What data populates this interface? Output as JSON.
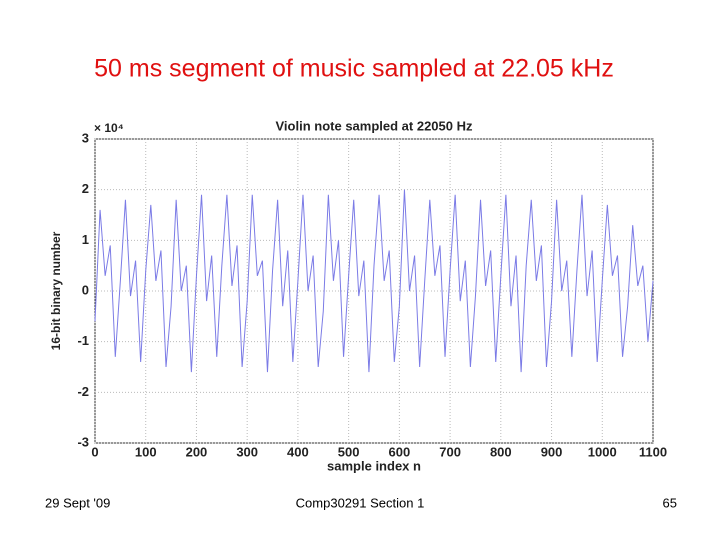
{
  "slide": {
    "title": "50 ms segment of music sampled at 22.05 kHz",
    "date": "29 Sept '09",
    "course": "Comp30291 Section 1",
    "page": "65"
  },
  "chart_data": {
    "type": "line",
    "title": "Violin note sampled at 22050 Hz",
    "x_label": "sample index n",
    "y_label": "16-bit binary number",
    "y_multiplier": "× 10⁴",
    "color": "#7b7be6",
    "grid": true,
    "xlim": [
      0,
      1100
    ],
    "xticks": [
      0,
      100,
      200,
      300,
      400,
      500,
      600,
      700,
      800,
      900,
      1000,
      1100
    ],
    "ylim": [
      -3,
      3
    ],
    "yticks": [
      -3,
      -2,
      -1,
      0,
      1,
      2,
      3
    ],
    "x": [
      0,
      10,
      20,
      30,
      40,
      50,
      60,
      70,
      80,
      90,
      100,
      110,
      120,
      130,
      140,
      150,
      160,
      170,
      180,
      190,
      200,
      210,
      220,
      230,
      240,
      250,
      260,
      270,
      280,
      290,
      300,
      310,
      320,
      330,
      340,
      350,
      360,
      370,
      380,
      390,
      400,
      410,
      420,
      430,
      440,
      450,
      460,
      470,
      480,
      490,
      500,
      510,
      520,
      530,
      540,
      550,
      560,
      570,
      580,
      590,
      600,
      610,
      620,
      630,
      640,
      650,
      660,
      670,
      680,
      690,
      700,
      710,
      720,
      730,
      740,
      750,
      760,
      770,
      780,
      790,
      800,
      810,
      820,
      830,
      840,
      850,
      860,
      870,
      880,
      890,
      900,
      910,
      920,
      930,
      940,
      950,
      960,
      970,
      980,
      990,
      1000,
      1010,
      1020,
      1030,
      1040,
      1050,
      1060,
      1070,
      1080,
      1090,
      1100
    ],
    "values": [
      -0.6,
      1.6,
      0.3,
      0.9,
      -1.3,
      0.2,
      1.8,
      -0.1,
      0.6,
      -1.4,
      0.4,
      1.7,
      0.2,
      0.8,
      -1.5,
      -0.3,
      1.8,
      0.0,
      0.5,
      -1.6,
      0.3,
      1.9,
      -0.2,
      0.7,
      -1.3,
      0.5,
      1.9,
      0.1,
      0.9,
      -1.5,
      -0.2,
      1.9,
      0.3,
      0.6,
      -1.6,
      0.4,
      1.8,
      -0.3,
      0.8,
      -1.4,
      0.2,
      1.9,
      0.0,
      0.7,
      -1.5,
      -0.4,
      1.9,
      0.2,
      1.0,
      -1.3,
      0.3,
      1.8,
      -0.1,
      0.6,
      -1.6,
      0.5,
      1.9,
      0.2,
      0.8,
      -1.4,
      -0.3,
      2.0,
      0.0,
      0.7,
      -1.5,
      0.2,
      1.8,
      0.3,
      0.9,
      -1.3,
      0.4,
      1.9,
      -0.2,
      0.6,
      -1.5,
      -0.1,
      1.8,
      0.1,
      0.8,
      -1.4,
      0.3,
      1.9,
      -0.3,
      0.7,
      -1.6,
      0.5,
      1.8,
      0.2,
      0.9,
      -1.5,
      -0.2,
      1.8,
      0.0,
      0.6,
      -1.3,
      0.4,
      1.9,
      -0.1,
      0.8,
      -1.4,
      0.2,
      1.7,
      0.3,
      0.7,
      -1.3,
      -0.3,
      1.3,
      0.1,
      0.5,
      -1.0,
      0.2
    ]
  }
}
